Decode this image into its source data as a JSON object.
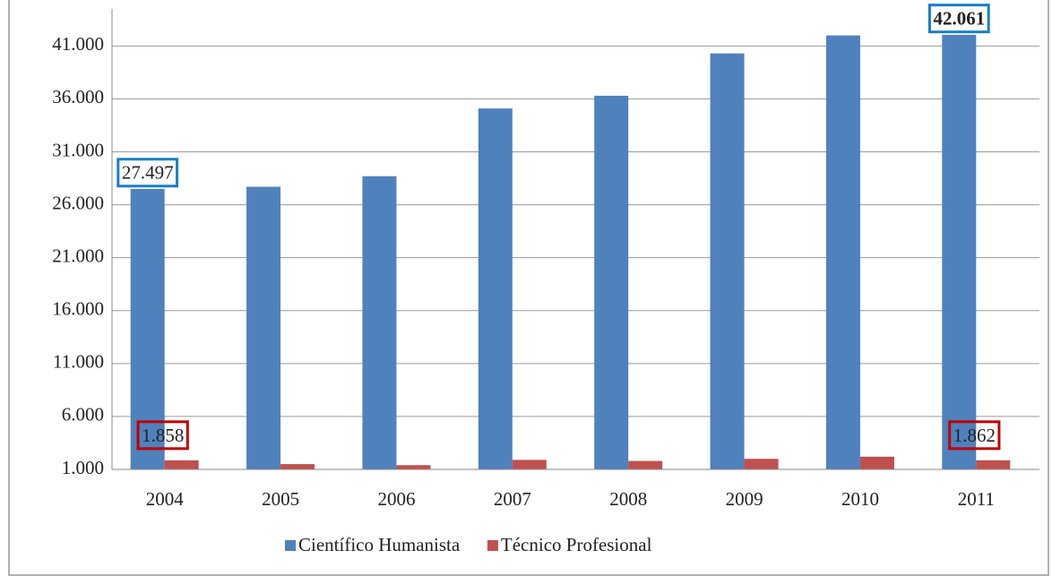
{
  "chart_data": {
    "type": "bar",
    "categories": [
      "2004",
      "2005",
      "2006",
      "2007",
      "2008",
      "2009",
      "2010",
      "2011"
    ],
    "series": [
      {
        "name": "Científico Humanista",
        "color": "#4f81bd",
        "values": [
          27497,
          27700,
          28700,
          35100,
          36300,
          40300,
          42000,
          42061
        ],
        "value_labels": [
          "27.497",
          null,
          null,
          null,
          null,
          null,
          null,
          "42.061"
        ]
      },
      {
        "name": "Técnico Profesional",
        "color": "#c0504d",
        "values": [
          1858,
          1500,
          1400,
          1900,
          1800,
          2000,
          2200,
          1862
        ],
        "value_labels": [
          "1.858",
          null,
          null,
          null,
          null,
          null,
          null,
          "1.862"
        ]
      }
    ],
    "ylim": [
      1000,
      44500
    ],
    "yticks": [
      {
        "value": 1000,
        "label": "1.000"
      },
      {
        "value": 6000,
        "label": "6.000"
      },
      {
        "value": 11000,
        "label": "11.000"
      },
      {
        "value": 16000,
        "label": "16.000"
      },
      {
        "value": 21000,
        "label": "21.000"
      },
      {
        "value": 26000,
        "label": "26.000"
      },
      {
        "value": 31000,
        "label": "31.000"
      },
      {
        "value": 36000,
        "label": "36.000"
      },
      {
        "value": 41000,
        "label": "41.000"
      }
    ],
    "grid": true,
    "legend": "bottom"
  }
}
